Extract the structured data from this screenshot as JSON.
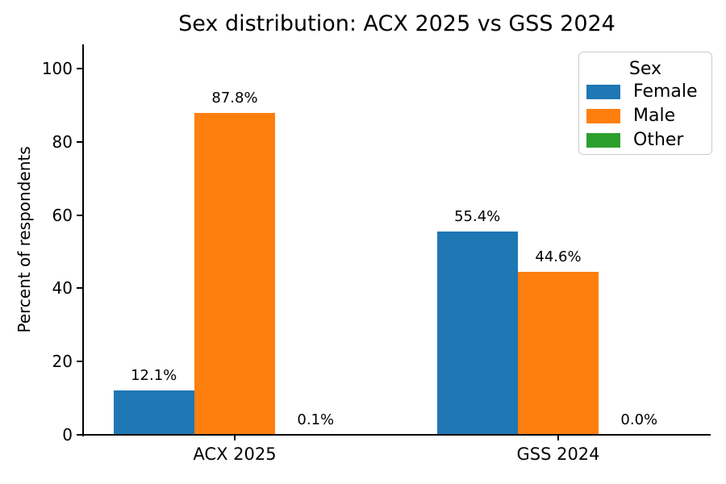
{
  "chart_data": {
    "type": "bar",
    "title": "Sex distribution: ACX 2025 vs GSS 2024",
    "xlabel": "",
    "ylabel": "Percent of respondents",
    "categories": [
      "ACX 2025",
      "GSS 2024"
    ],
    "series": [
      {
        "name": "Female",
        "color": "#1f77b4",
        "values": [
          12.1,
          55.4
        ],
        "labels": [
          "12.1%",
          "55.4%"
        ]
      },
      {
        "name": "Male",
        "color": "#ff7f0e",
        "values": [
          87.8,
          44.6
        ],
        "labels": [
          "87.8%",
          "44.6%"
        ]
      },
      {
        "name": "Other",
        "color": "#2ca02c",
        "values": [
          0.1,
          0.0
        ],
        "labels": [
          "0.1%",
          "0.0%"
        ]
      }
    ],
    "yticks": [
      0,
      20,
      40,
      60,
      80,
      100
    ],
    "ylim": [
      0,
      106.6
    ],
    "grid": false,
    "legend": {
      "title": "Sex",
      "position": "upper right"
    },
    "axis_color": "#000000",
    "background_color": "#ffffff"
  }
}
